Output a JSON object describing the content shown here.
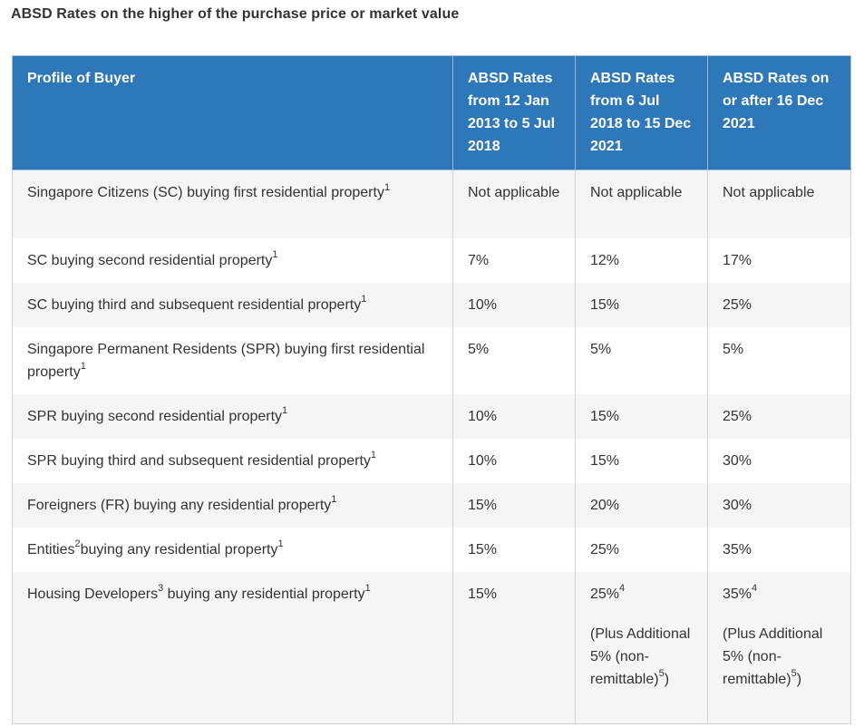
{
  "caption": "ABSD Rates on the higher of the purchase price or market value",
  "table": {
    "headers": [
      "Profile of Buyer",
      "ABSD Rates from 12 Jan 2013 to 5 Jul 2018",
      "ABSD Rates from 6 Jul 2018 to 15 Dec 2021",
      "ABSD Rates on or after 16 Dec 2021"
    ],
    "rows": [
      {
        "profile": "Singapore Citizens (SC) buying first residential property",
        "profile_sup": "1",
        "rate_2013": "Not applicable",
        "rate_2018": "Not applicable",
        "rate_2021": "Not applicable"
      },
      {
        "profile": "SC buying second residential property",
        "profile_sup": "1",
        "rate_2013": "7%",
        "rate_2018": "12%",
        "rate_2021": "17%"
      },
      {
        "profile": "SC buying third and subsequent residential property",
        "profile_sup": "1",
        "rate_2013": "10%",
        "rate_2018": "15%",
        "rate_2021": "25%"
      },
      {
        "profile": "Singapore Permanent Residents (SPR) buying first residential property",
        "profile_sup": "1",
        "rate_2013": "5%",
        "rate_2018": "5%",
        "rate_2021": "5%"
      },
      {
        "profile": "SPR buying second residential property",
        "profile_sup": "1",
        "rate_2013": "10%",
        "rate_2018": "15%",
        "rate_2021": "25%"
      },
      {
        "profile": "SPR buying third and subsequent residential property",
        "profile_sup": "1",
        "rate_2013": "10%",
        "rate_2018": "15%",
        "rate_2021": "30%"
      },
      {
        "profile": "Foreigners (FR) buying any residential property",
        "profile_sup": "1",
        "rate_2013": "15%",
        "rate_2018": "20%",
        "rate_2021": "30%"
      },
      {
        "profile_a": "Entities",
        "profile_a_sup": "2",
        "profile_b": "buying any residential property",
        "profile_sup": "1",
        "rate_2013": "15%",
        "rate_2018": "25%",
        "rate_2021": "35%"
      },
      {
        "profile_a": "Housing Developers",
        "profile_a_sup": "3",
        "profile_b": " buying any residential property",
        "profile_sup": "1",
        "rate_2013": "15%",
        "rate_2018": "25%",
        "rate_2018_sup": "4",
        "rate_2018_note": "(Plus Additional 5% (non-remittable)",
        "rate_2018_note_sup": "5",
        "rate_2018_note_close": ")",
        "rate_2021": "35%",
        "rate_2021_sup": "4",
        "rate_2021_note": "(Plus Additional 5% (non-remittable)",
        "rate_2021_note_sup": "5",
        "rate_2021_note_close": ")"
      }
    ]
  }
}
